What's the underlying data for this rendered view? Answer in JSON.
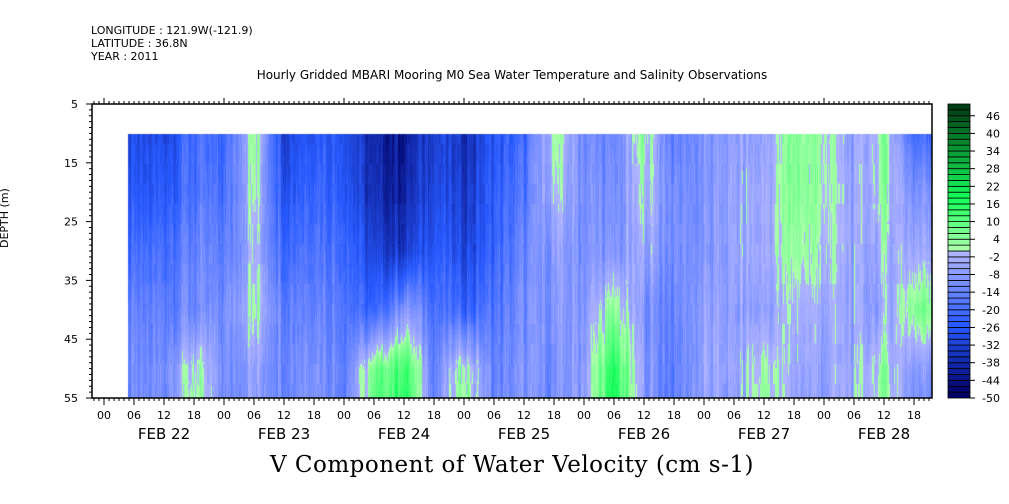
{
  "header": {
    "longitude": "LONGITUDE : 121.9W(-121.9)",
    "latitude": "LATITUDE : 36.8N",
    "year": "YEAR : 2011"
  },
  "chart_data": {
    "type": "heatmap",
    "title": "Hourly Gridded MBARI Mooring M0 Sea Water Temperature and Salinity Observations",
    "xlabel": "V Component of Water Velocity (cm s-1)",
    "ylabel": "DEPTH (m)",
    "ylim": [
      55,
      5
    ],
    "y_ticks": [
      5,
      15,
      25,
      35,
      45,
      55
    ],
    "x_hour_ticks": [
      "00",
      "06",
      "12",
      "18"
    ],
    "x_date_labels": [
      "FEB 22",
      "FEB 23",
      "FEB 24",
      "FEB 25",
      "FEB 26",
      "FEB 27",
      "FEB 28"
    ],
    "colorbar": {
      "min": -50,
      "max": 50,
      "step": 2,
      "tick_labels": [
        "46",
        "40",
        "34",
        "28",
        "22",
        "16",
        "10",
        "4",
        "-2",
        "-8",
        "-14",
        "-20",
        "-26",
        "-32",
        "-38",
        "-44",
        "-50"
      ]
    },
    "data_depths": [
      10,
      20,
      30,
      40,
      50,
      55
    ],
    "data_times": [
      "FEB 22 06",
      "FEB 22 12",
      "FEB 22 18",
      "FEB 23 00",
      "FEB 23 06",
      "FEB 23 12",
      "FEB 23 18",
      "FEB 24 00",
      "FEB 24 06",
      "FEB 24 12",
      "FEB 24 18",
      "FEB 25 00",
      "FEB 25 06",
      "FEB 25 12",
      "FEB 25 18",
      "FEB 26 00",
      "FEB 26 06",
      "FEB 26 12",
      "FEB 26 18",
      "FEB 27 00",
      "FEB 27 06",
      "FEB 27 12",
      "FEB 27 18",
      "FEB 28 00",
      "FEB 28 06",
      "FEB 28 12",
      "FEB 28 18"
    ],
    "values": [
      [
        -30,
        -28,
        -20,
        -22,
        4,
        -30,
        -24,
        -26,
        -40,
        -42,
        -30,
        -36,
        -26,
        -22,
        2,
        -12,
        -14,
        4,
        -16,
        -10,
        -8,
        -6,
        6,
        2,
        -8,
        4,
        -20
      ],
      [
        -28,
        -24,
        -18,
        -20,
        2,
        -26,
        -20,
        -24,
        -38,
        -40,
        -28,
        -34,
        -24,
        -18,
        -2,
        -10,
        -12,
        0,
        -12,
        -10,
        -6,
        -4,
        6,
        2,
        -6,
        2,
        -10
      ],
      [
        -22,
        -18,
        -14,
        -16,
        -2,
        -20,
        -16,
        -20,
        -32,
        -34,
        -24,
        -30,
        -22,
        -14,
        -8,
        -10,
        -10,
        -4,
        -12,
        -10,
        -6,
        -4,
        4,
        0,
        -6,
        -2,
        -4
      ],
      [
        -16,
        -14,
        -12,
        -12,
        2,
        -14,
        -12,
        -16,
        -24,
        -8,
        -18,
        -22,
        -18,
        -12,
        -10,
        -8,
        4,
        -10,
        -14,
        -6,
        -8,
        -6,
        -2,
        -4,
        -6,
        -6,
        6
      ],
      [
        -14,
        -10,
        2,
        -12,
        -6,
        -12,
        -8,
        -14,
        6,
        14,
        -14,
        4,
        -14,
        -10,
        -12,
        -6,
        16,
        -8,
        -16,
        -6,
        -6,
        2,
        -4,
        -6,
        -4,
        2,
        -8
      ],
      [
        -14,
        -10,
        4,
        -12,
        -6,
        -12,
        -8,
        -14,
        8,
        16,
        -14,
        6,
        -14,
        -10,
        -12,
        -6,
        18,
        -8,
        -16,
        -6,
        -8,
        4,
        -6,
        -6,
        -4,
        4,
        -10
      ]
    ]
  }
}
